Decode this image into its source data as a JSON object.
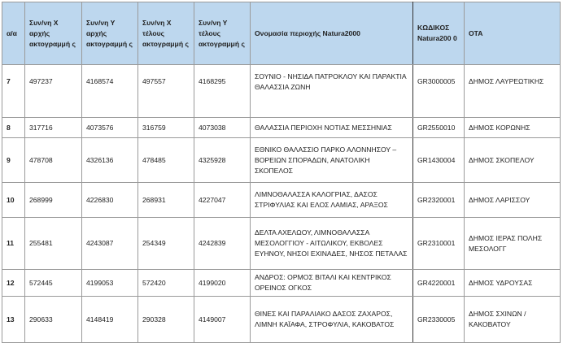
{
  "headers": [
    "α/α",
    "Συν/νη Χ αρχής ακτογραμμή ς",
    "Συν/νη Υ αρχής ακτογραμμή ς",
    "Συν/νη Χ τέλους ακτογραμμή ς",
    "Συν/νη Υ τέλους ακτογραμμή ς",
    "Ονομασία περιοχής Natura2000",
    "ΚΩΔΙΚΟΣ Natura200 0",
    "ΟΤΑ"
  ],
  "header_color": "#bdd7ee",
  "rows": [
    [
      "7",
      "497237",
      "4168574",
      "497557",
      "4168295",
      "ΣΟΥΝΙΟ - ΝΗΣΙΔΑ ΠΑΤΡΟΚΛΟΥ ΚΑΙ ΠΑΡΑΚΤΙΑ ΘΑΛΑΣΣΙΑ ΖΩΝΗ",
      "GR3000005",
      "ΔΗΜΟΣ ΛΑΥΡΕΩΤΙΚΗΣ"
    ],
    [
      "8",
      "317716",
      "4073576",
      "316759",
      "4073038",
      "ΘΑΛΑΣΣΙΑ ΠΕΡΙΟΧΗ ΝΟΤΙΑΣ ΜΕΣΣΗΝΙΑΣ",
      "GR2550010",
      "ΔΗΜΟΣ ΚΟΡΩΝΗΣ"
    ],
    [
      "9",
      "478708",
      "4326136",
      "478485",
      "4325928",
      "ΕΘΝΙΚΟ ΘΑΛΑΣΣΙΟ ΠΑΡΚΟ ΑΛΟΝΝΗΣΟΥ – ΒΟΡΕΙΩΝ ΣΠΟΡΑΔΩΝ, ΑΝΑΤΟΛΙΚΗ ΣΚΟΠΕΛΟΣ",
      "GR1430004",
      "ΔΗΜΟΣ ΣΚΟΠΕΛΟΥ"
    ],
    [
      "10",
      "268999",
      "4226830",
      "268931",
      "4227047",
      "ΛΙΜΝΟΘΑΛΑΣΣΑ ΚΑΛΟΓΡΙΑΣ, ΔΑΣΟΣ ΣΤΡΙΦΥΛΙΑΣ ΚΑΙ ΕΛΟΣ ΛΑΜΙΑΣ, ΑΡΑΞΟΣ",
      "GR2320001",
      "ΔΗΜΟΣ ΛΑΡΙΣΣΟΥ"
    ],
    [
      "11",
      "255481",
      "4243087",
      "254349",
      "4242839",
      "ΔΕΛΤΑ ΑΧΕΛΩΟΥ, ΛΙΜΝΟΘΑΛΑΣΣΑ ΜΕΣΟΛΟΓΓΙΟΥ - ΑΙΤΩΛΙΚΟΥ, ΕΚΒΟΛΕΣ ΕΥΗΝΟΥ, ΝΗΣΟΙ ΕΧΙΝΑΔΕΣ, ΝΗΣΟΣ ΠΕΤΑΛΑΣ",
      "GR2310001",
      "ΔΗΜΟΣ ΙΕΡΑΣ ΠΟΛΗΣ ΜΕΣΟΛΟΓΓ"
    ],
    [
      "12",
      "572445",
      "4199053",
      "572420",
      "4199020",
      "ΑΝΔΡΟΣ: ΟΡΜΟΣ ΒΙΤΑΛΙ ΚΑΙ ΚΕΝΤΡΙΚΟΣ ΟΡΕΙΝΟΣ ΟΓΚΟΣ",
      "GR4220001",
      "ΔΗΜΟΣ ΥΔΡΟΥΣΑΣ"
    ],
    [
      "13",
      "290633",
      "4148419",
      "290328",
      "4149007",
      "ΘΙΝΕΣ ΚΑΙ ΠΑΡΑΛΙΑΚΟ ΔΑΣΟΣ ΖΑΧΑΡΟΣ, ΛΙΜΝΗ ΚΑΪΑΦΑ, ΣΤΡΟΦΥΛΙΑ, ΚΑΚΟΒΑΤΟΣ",
      "GR2330005",
      "ΔΗΜΟΣ ΣΧΙΝΩΝ / ΚΑΚΟΒΑΤΟΥ"
    ]
  ]
}
